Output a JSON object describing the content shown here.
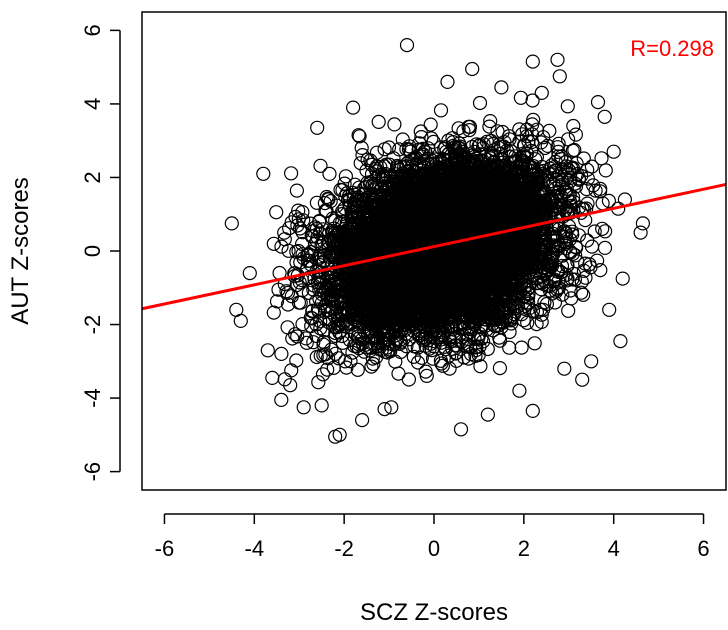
{
  "chart_data": {
    "type": "scatter",
    "title": "",
    "xlabel": "SCZ Z-scores",
    "ylabel": "AUT Z-scores",
    "xlim": [
      -6.5,
      6.5
    ],
    "ylim": [
      -6.5,
      6.5
    ],
    "xticks": [
      "-6",
      "-4",
      "-2",
      "0",
      "2",
      "4",
      "6"
    ],
    "yticks": [
      "-6",
      "-4",
      "-2",
      "0",
      "2",
      "4",
      "6"
    ],
    "grid": false,
    "marker": "open-circle",
    "point_color": "#000000",
    "fit_line": {
      "color": "#ff0000",
      "intercept": 0.12,
      "slope": 0.26
    },
    "annotation": {
      "text": "R=0.298",
      "color": "#ff0000",
      "placement": "top-right"
    },
    "outlier_points": [
      {
        "x": -0.6,
        "y": 5.6
      },
      {
        "x": 2.2,
        "y": 5.15
      },
      {
        "x": 2.75,
        "y": 5.2
      },
      {
        "x": 2.8,
        "y": 4.75
      },
      {
        "x": 0.85,
        "y": 4.95
      },
      {
        "x": -4.5,
        "y": 0.75
      },
      {
        "x": -4.4,
        "y": -1.6
      },
      {
        "x": -4.3,
        "y": -1.9
      },
      {
        "x": -4.1,
        "y": -0.6
      },
      {
        "x": -3.8,
        "y": 2.1
      },
      {
        "x": -3.7,
        "y": -2.7
      },
      {
        "x": -3.6,
        "y": -3.45
      },
      {
        "x": -3.4,
        "y": -4.05
      },
      {
        "x": -2.9,
        "y": -4.25
      },
      {
        "x": -2.2,
        "y": -5.05
      },
      {
        "x": -2.1,
        "y": -5.0
      },
      {
        "x": -1.6,
        "y": -4.6
      },
      {
        "x": -0.95,
        "y": -4.25
      },
      {
        "x": 0.6,
        "y": -4.85
      },
      {
        "x": 1.2,
        "y": -4.45
      },
      {
        "x": 2.2,
        "y": -4.35
      },
      {
        "x": 3.5,
        "y": -3.0
      },
      {
        "x": 4.15,
        "y": -2.45
      },
      {
        "x": 4.65,
        "y": 0.75
      },
      {
        "x": 4.6,
        "y": 0.5
      },
      {
        "x": 4.25,
        "y": 1.4
      },
      {
        "x": 4.1,
        "y": 1.15
      },
      {
        "x": 4.0,
        "y": 2.7
      },
      {
        "x": 3.8,
        "y": 3.65
      },
      {
        "x": 3.65,
        "y": 4.05
      },
      {
        "x": 3.9,
        "y": -1.6
      },
      {
        "x": 4.2,
        "y": -0.75
      },
      {
        "x": -2.6,
        "y": 3.35
      },
      {
        "x": -1.8,
        "y": 3.9
      },
      {
        "x": 0.3,
        "y": 4.6
      },
      {
        "x": 1.5,
        "y": 4.45
      },
      {
        "x": 2.4,
        "y": 4.3
      },
      {
        "x": 3.1,
        "y": 3.4
      },
      {
        "x": 3.3,
        "y": -3.5
      },
      {
        "x": -3.2,
        "y": -3.65
      },
      {
        "x": -2.5,
        "y": -4.2
      },
      {
        "x": -1.1,
        "y": -4.3
      },
      {
        "x": 1.9,
        "y": -3.8
      },
      {
        "x": 2.9,
        "y": -3.2
      }
    ],
    "core_cloud": {
      "n_points": 9000,
      "x_mean": 0.2,
      "x_sd": 1.2,
      "x_range": [
        -3.6,
        3.9
      ],
      "y_mean": 0.1,
      "y_sd": 1.15,
      "y_range": [
        -3.6,
        4.3
      ],
      "correlation": 0.298
    }
  }
}
